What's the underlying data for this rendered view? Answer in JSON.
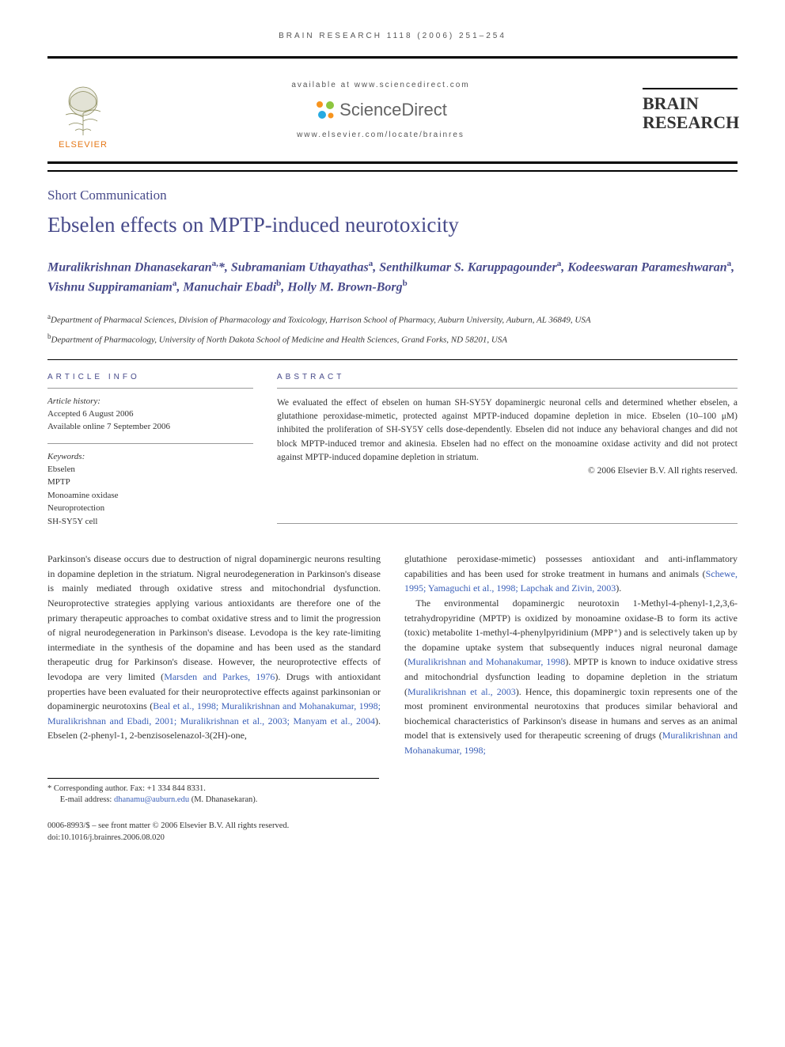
{
  "running_head": "BRAIN RESEARCH 1118 (2006) 251–254",
  "header": {
    "elsevier_label": "ELSEVIER",
    "available_text": "available at www.sciencedirect.com",
    "sciencedirect_label": "ScienceDirect",
    "journal_url": "www.elsevier.com/locate/brainres",
    "journal_title_line1": "BRAIN",
    "journal_title_line2": "RESEARCH"
  },
  "article": {
    "type": "Short Communication",
    "title": "Ebselen effects on MPTP-induced neurotoxicity",
    "authors_html": "Muralikrishnan Dhanasekaran<sup>a,</sup>*, Subramaniam Uthayathas<sup>a</sup>, Senthilkumar S. Karuppagounder<sup>a</sup>, Kodeeswaran Parameshwaran<sup>a</sup>, Vishnu Suppiramaniam<sup>a</sup>, Manuchair Ebadi<sup>b</sup>, Holly M. Brown-Borg<sup>b</sup>",
    "affiliations": [
      {
        "sup": "a",
        "text": "Department of Pharmacal Sciences, Division of Pharmacology and Toxicology, Harrison School of Pharmacy, Auburn University, Auburn, AL 36849, USA"
      },
      {
        "sup": "b",
        "text": "Department of Pharmacology, University of North Dakota School of Medicine and Health Sciences, Grand Forks, ND 58201, USA"
      }
    ]
  },
  "article_info": {
    "heading": "ARTICLE INFO",
    "history_label": "Article history:",
    "accepted": "Accepted 6 August 2006",
    "available_online": "Available online 7 September 2006",
    "keywords_label": "Keywords:",
    "keywords": [
      "Ebselen",
      "MPTP",
      "Monoamine oxidase",
      "Neuroprotection",
      "SH-SY5Y cell"
    ]
  },
  "abstract": {
    "heading": "ABSTRACT",
    "text": "We evaluated the effect of ebselen on human SH-SY5Y dopaminergic neuronal cells and determined whether ebselen, a glutathione peroxidase-mimetic, protected against MPTP-induced dopamine depletion in mice. Ebselen (10–100 μM) inhibited the proliferation of SH-SY5Y cells dose-dependently. Ebselen did not induce any behavioral changes and did not block MPTP-induced tremor and akinesia. Ebselen had no effect on the monoamine oxidase activity and did not protect against MPTP-induced dopamine depletion in striatum.",
    "copyright": "© 2006 Elsevier B.V. All rights reserved."
  },
  "body": {
    "left": [
      {
        "plain": "Parkinson's disease occurs due to destruction of nigral dopaminergic neurons resulting in dopamine depletion in the striatum. Nigral neurodegeneration in Parkinson's disease is mainly mediated through oxidative stress and mitochondrial dysfunction. Neuroprotective strategies applying various antioxidants are therefore one of the primary therapeutic approaches to combat oxidative stress and to limit the progression of nigral neurodegeneration in Parkinson's disease. Levodopa is the key rate-limiting intermediate in the synthesis of the dopamine and has been used as the standard therapeutic drug for Parkinson's disease. However, the neuroprotective effects of levodopa are very limited (",
        "link": "Marsden and Parkes, 1976",
        "tail": "). Drugs with antioxidant properties have been evaluated for their neuroprotective effects against parkinsonian or dopaminergic neurotoxins ("
      },
      {
        "link": "Beal et al., 1998; Muralikrishnan and Mohanakumar, 1998; Muralikrishnan and Ebadi, 2001; Muralikrishnan et al., 2003; Manyam et al., 2004",
        "tail": "). Ebselen (2-phenyl-1, 2-benzisoselenazol-3(2H)-one,"
      }
    ],
    "right": [
      {
        "plain": "glutathione peroxidase-mimetic) possesses antioxidant and anti-inflammatory capabilities and has been used for stroke treatment in humans and animals (",
        "link": "Schewe, 1995; Yamaguchi et al., 1998; Lapchak and Zivin, 2003",
        "tail": ")."
      },
      {
        "indent": true,
        "plain": "The environmental dopaminergic neurotoxin 1-Methyl-4-phenyl-1,2,3,6-tetrahydropyridine (MPTP) is oxidized by monoamine oxidase-B to form its active (toxic) metabolite 1-methyl-4-phenylpyridinium (MPP⁺) and is selectively taken up by the dopamine uptake system that subsequently induces nigral neuronal damage (",
        "link": "Muralikrishnan and Mohanakumar, 1998",
        "tail": "). MPTP is known to induce oxidative stress and mitochondrial dysfunction leading to dopamine depletion in the striatum ("
      },
      {
        "link": "Muralikrishnan et al., 2003",
        "tail": "). Hence, this dopaminergic toxin represents one of the most prominent environmental neurotoxins that produces similar behavioral and biochemical characteristics of Parkinson's disease in humans and serves as an animal model that is extensively used for therapeutic screening of drugs ("
      },
      {
        "link": "Muralikrishnan and Mohanakumar, 1998;",
        "tail": ""
      }
    ]
  },
  "footnotes": {
    "corresponding": "* Corresponding author. Fax: +1 334 844 8331.",
    "email_label": "E-mail address: ",
    "email": "dhanamu@auburn.edu",
    "email_tail": " (M. Dhanasekaran)."
  },
  "footer": {
    "line1": "0006-8993/$ – see front matter © 2006 Elsevier B.V. All rights reserved.",
    "line2": "doi:10.1016/j.brainres.2006.08.020"
  },
  "colors": {
    "heading_blue": "#474a8a",
    "link_blue": "#3a5fb8",
    "elsevier_orange": "#e67817",
    "sd_orange": "#f7941e",
    "sd_green": "#8dc63f",
    "sd_blue": "#27aae1",
    "sd_gray": "#646464"
  }
}
